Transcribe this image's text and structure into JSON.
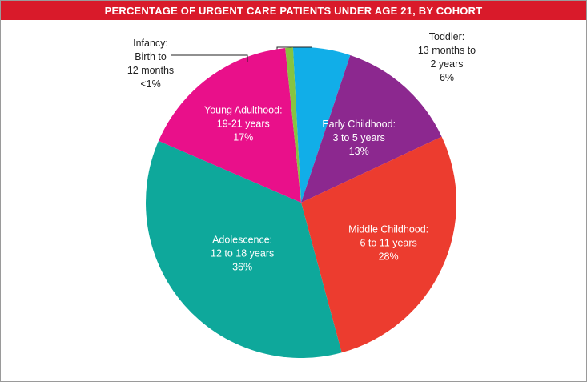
{
  "colors": {
    "title_bg": "#d91a2a",
    "title_text": "#ffffff",
    "leader": "#222222"
  },
  "chart_data": {
    "type": "pie",
    "title": "PERCENTAGE OF URGENT CARE PATIENTS UNDER AGE 21, BY COHORT",
    "slices": [
      {
        "name": "Toddler:",
        "range": [
          "13 months to",
          "2 years"
        ],
        "pct_label": "6%",
        "value": 6,
        "color": "#11aee8",
        "label_color": "#222222",
        "label_outside": true
      },
      {
        "name": "Early Childhood:",
        "range": [
          "3 to 5 years"
        ],
        "pct_label": "13%",
        "value": 13,
        "color": "#8c288f",
        "label_color": "#ffffff",
        "label_outside": false
      },
      {
        "name": "Middle Childhood:",
        "range": [
          "6 to 11 years"
        ],
        "pct_label": "28%",
        "value": 28,
        "color": "#ec3c2f",
        "label_color": "#ffffff",
        "label_outside": false
      },
      {
        "name": "Adolescence:",
        "range": [
          "12 to 18 years"
        ],
        "pct_label": "36%",
        "value": 36,
        "color": "#0ea89b",
        "label_color": "#ffffff",
        "label_outside": false
      },
      {
        "name": "Young Adulthood:",
        "range": [
          "19-21 years"
        ],
        "pct_label": "17%",
        "value": 17,
        "color": "#e9108a",
        "label_color": "#ffffff",
        "label_outside": false
      },
      {
        "name": "Infancy:",
        "range": [
          "Birth to",
          "12 months"
        ],
        "pct_label": "<1%",
        "value": 0.8,
        "color": "#86c440",
        "label_color": "#222222",
        "label_outside": true
      }
    ]
  }
}
